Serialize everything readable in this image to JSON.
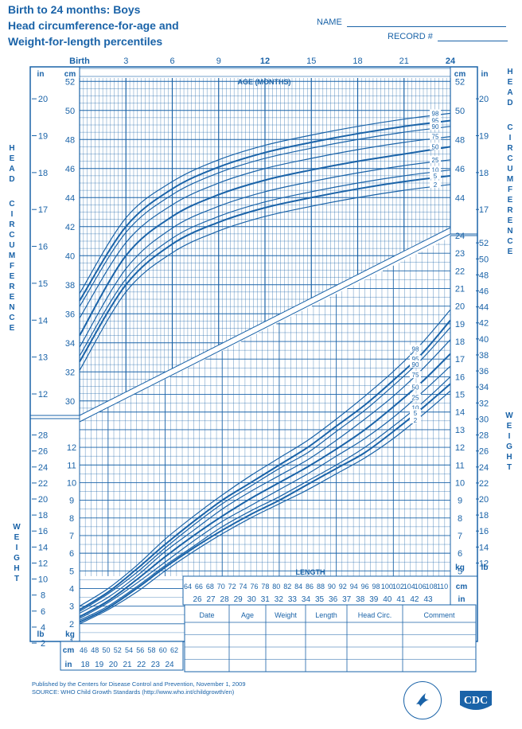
{
  "header": {
    "title_lines": [
      "Birth to 24 months: Boys",
      "Head circumference-for-age and",
      "Weight-for-length percentiles"
    ],
    "name_label": "NAME",
    "record_label": "RECORD #"
  },
  "footer": {
    "line1": "Published by the Centers for Disease Control and Prevention, November 1, 2009",
    "line2": "SOURCE:  WHO Child Growth Standards (http://www.who.int/childgrowth/en)"
  },
  "logos": {
    "cdc_text": "CDC",
    "hhs_icon": "hhs-eagle-icon"
  },
  "colors": {
    "primary": "#1a63a8",
    "grid": "#1a63a8",
    "background": "#ffffff"
  },
  "labels": {
    "head_circumference": "HEAD CIRCUMFERENCE",
    "weight": "WEIGHT",
    "age_months": "AGE (MONTHS)",
    "length": "LENGTH",
    "cm": "cm",
    "in": "in",
    "kg": "kg",
    "lb": "lb"
  },
  "table": {
    "headers": [
      "Date",
      "Age",
      "Weight",
      "Length",
      "Head Circ.",
      "Comment"
    ],
    "rows": 4
  },
  "chart_data": [
    {
      "type": "line",
      "title": "Head circumference-for-age",
      "xlabel": "AGE (MONTHS)",
      "ylabel": "HEAD CIRCUMFERENCE",
      "x_tick_labels": [
        "Birth",
        "3",
        "6",
        "9",
        "12",
        "15",
        "18",
        "21",
        "24"
      ],
      "xlim": [
        0,
        24
      ],
      "ylim_cm": [
        29,
        53
      ],
      "y_ticks_cm": [
        30,
        32,
        34,
        36,
        38,
        40,
        42,
        44,
        46,
        48,
        50,
        52
      ],
      "y_ticks_in": [
        12,
        13,
        14,
        15,
        16,
        17,
        18,
        19,
        20
      ],
      "x": [
        0,
        3,
        6,
        9,
        12,
        15,
        18,
        21,
        24
      ],
      "series": [
        {
          "name": "98",
          "values": [
            37.4,
            42.6,
            45.1,
            46.6,
            47.6,
            48.3,
            48.9,
            49.4,
            49.8
          ]
        },
        {
          "name": "95",
          "values": [
            36.9,
            42.0,
            44.6,
            46.1,
            47.1,
            47.8,
            48.4,
            48.9,
            49.3
          ]
        },
        {
          "name": "90",
          "values": [
            36.5,
            41.6,
            44.2,
            45.7,
            46.7,
            47.4,
            48.0,
            48.5,
            48.9
          ]
        },
        {
          "name": "75",
          "values": [
            35.7,
            40.9,
            43.5,
            45.0,
            46.0,
            46.7,
            47.3,
            47.8,
            48.2
          ]
        },
        {
          "name": "50",
          "values": [
            34.5,
            40.0,
            42.7,
            44.2,
            45.2,
            45.9,
            46.5,
            47.0,
            47.5
          ]
        },
        {
          "name": "25",
          "values": [
            33.7,
            39.1,
            41.9,
            43.4,
            44.4,
            45.1,
            45.7,
            46.2,
            46.6
          ]
        },
        {
          "name": "10",
          "values": [
            33.1,
            38.4,
            41.2,
            42.7,
            43.7,
            44.4,
            45.0,
            45.5,
            45.9
          ]
        },
        {
          "name": "5",
          "values": [
            32.7,
            38.0,
            40.8,
            42.3,
            43.3,
            44.0,
            44.6,
            45.1,
            45.5
          ]
        },
        {
          "name": "2",
          "values": [
            32.1,
            37.5,
            40.2,
            41.7,
            42.7,
            43.4,
            44.0,
            44.5,
            44.9
          ]
        }
      ]
    },
    {
      "type": "line",
      "title": "Weight-for-length",
      "xlabel": "LENGTH",
      "ylabel": "WEIGHT",
      "xlim": [
        45,
        110
      ],
      "ylim_kg": [
        1,
        24
      ],
      "x_ticks_cm": [
        46,
        48,
        50,
        52,
        54,
        56,
        58,
        60,
        62,
        64,
        66,
        68,
        70,
        72,
        74,
        76,
        78,
        80,
        82,
        84,
        86,
        88,
        90,
        92,
        94,
        96,
        98,
        100,
        102,
        104,
        106,
        108,
        110
      ],
      "x_ticks_in": [
        18,
        19,
        20,
        21,
        22,
        23,
        24,
        25,
        26,
        27,
        28,
        29,
        30,
        31,
        32,
        33,
        34,
        35,
        36,
        37,
        38,
        39,
        40,
        41,
        42,
        43
      ],
      "y_ticks_kg": [
        1,
        2,
        3,
        4,
        5,
        6,
        7,
        8,
        9,
        10,
        11,
        12,
        13,
        14,
        15,
        16,
        17,
        18,
        19,
        20,
        21,
        22,
        23,
        24
      ],
      "y_ticks_lb": [
        2,
        4,
        6,
        8,
        10,
        12,
        14,
        16,
        18,
        20,
        22,
        24,
        26,
        28,
        30,
        32,
        34,
        36,
        38,
        40,
        42,
        44,
        46,
        48,
        50,
        52
      ],
      "x": [
        45,
        50,
        55,
        60,
        65,
        70,
        75,
        80,
        85,
        90,
        95,
        100,
        105,
        110
      ],
      "series": [
        {
          "name": "98",
          "values": [
            3.0,
            4.0,
            5.3,
            6.8,
            8.1,
            9.3,
            10.4,
            11.4,
            12.4,
            13.6,
            14.9,
            16.3,
            17.9,
            19.8
          ]
        },
        {
          "name": "95",
          "values": [
            2.8,
            3.8,
            5.1,
            6.5,
            7.8,
            9.0,
            10.0,
            11.0,
            12.0,
            13.2,
            14.4,
            15.8,
            17.3,
            19.2
          ]
        },
        {
          "name": "90",
          "values": [
            2.7,
            3.7,
            4.9,
            6.3,
            7.6,
            8.8,
            9.8,
            10.8,
            11.7,
            12.9,
            14.1,
            15.5,
            17.0,
            18.8
          ]
        },
        {
          "name": "75",
          "values": [
            2.6,
            3.5,
            4.7,
            6.1,
            7.3,
            8.5,
            9.5,
            10.4,
            11.3,
            12.4,
            13.6,
            14.9,
            16.4,
            18.1
          ]
        },
        {
          "name": "50",
          "values": [
            2.4,
            3.3,
            4.5,
            5.8,
            7.0,
            8.1,
            9.1,
            10.0,
            10.9,
            11.9,
            13.0,
            14.3,
            15.7,
            17.3
          ]
        },
        {
          "name": "25",
          "values": [
            2.3,
            3.2,
            4.3,
            5.5,
            6.7,
            7.8,
            8.7,
            9.6,
            10.5,
            11.5,
            12.5,
            13.7,
            15.1,
            16.6
          ]
        },
        {
          "name": "10",
          "values": [
            2.2,
            3.0,
            4.1,
            5.3,
            6.4,
            7.5,
            8.4,
            9.2,
            10.1,
            11.0,
            12.0,
            13.2,
            14.5,
            16.0
          ]
        },
        {
          "name": "5",
          "values": [
            2.1,
            2.9,
            4.0,
            5.2,
            6.3,
            7.3,
            8.2,
            9.0,
            9.9,
            10.8,
            11.7,
            12.9,
            14.2,
            15.6
          ]
        },
        {
          "name": "2",
          "values": [
            2.0,
            2.8,
            3.8,
            5.0,
            6.1,
            7.1,
            8.0,
            8.8,
            9.6,
            10.5,
            11.4,
            12.5,
            13.8,
            15.2
          ]
        }
      ]
    }
  ]
}
